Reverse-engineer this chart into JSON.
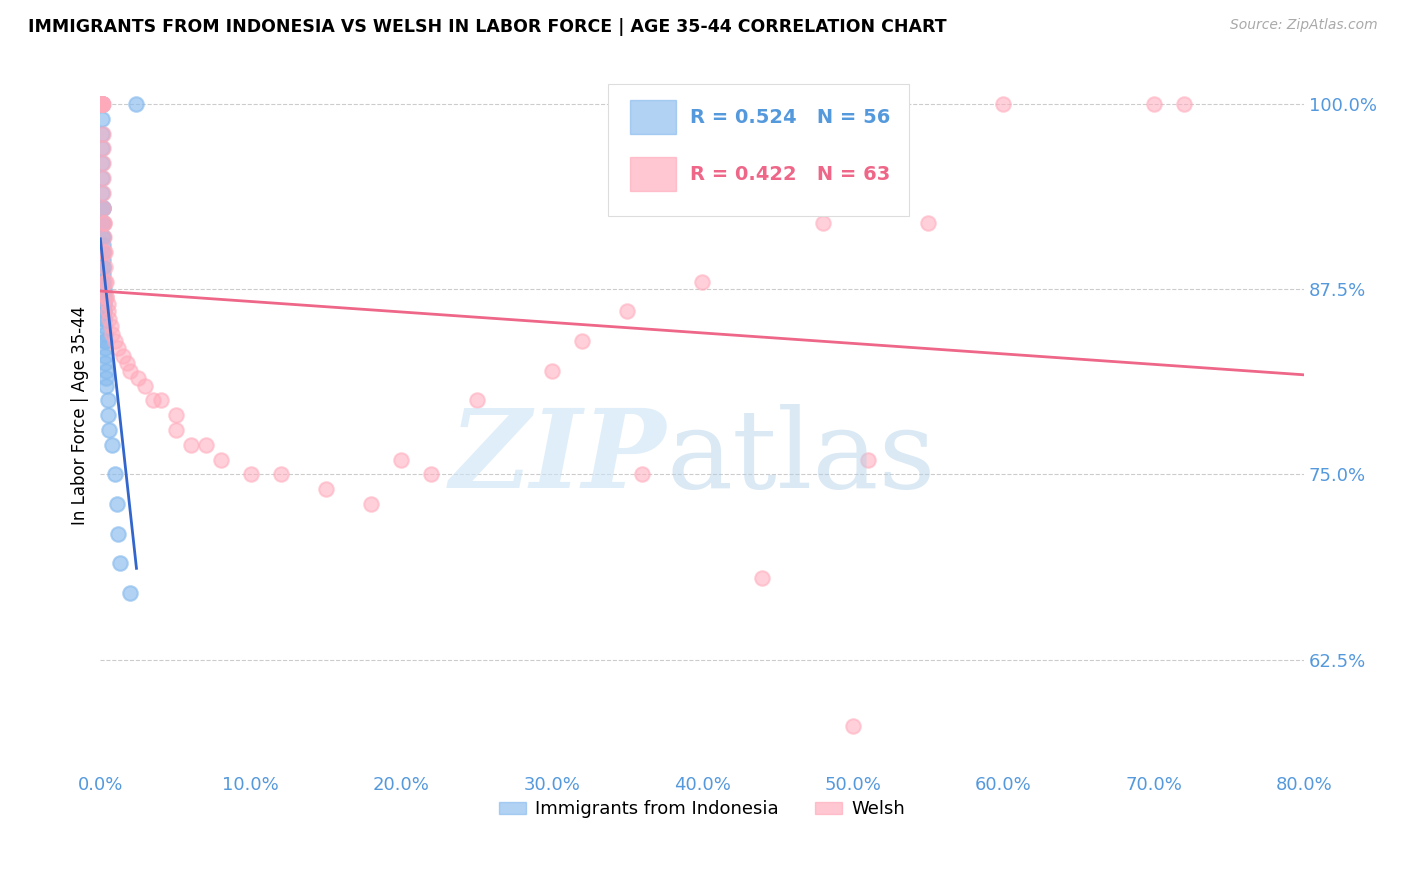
{
  "title": "IMMIGRANTS FROM INDONESIA VS WELSH IN LABOR FORCE | AGE 35-44 CORRELATION CHART",
  "source": "Source: ZipAtlas.com",
  "ylabel": "In Labor Force | Age 35-44",
  "xlim": [
    0.0,
    0.8
  ],
  "ylim": [
    0.55,
    1.03
  ],
  "yticks": [
    0.625,
    0.75,
    0.875,
    1.0
  ],
  "ytick_labels": [
    "62.5%",
    "75.0%",
    "87.5%",
    "100.0%"
  ],
  "xticks": [
    0.0,
    0.1,
    0.2,
    0.3,
    0.4,
    0.5,
    0.6,
    0.7,
    0.8
  ],
  "xtick_labels": [
    "0.0%",
    "10.0%",
    "20.0%",
    "30.0%",
    "40.0%",
    "50.0%",
    "60.0%",
    "70.0%",
    "80.0%"
  ],
  "legend1_r": "R = 0.524",
  "legend1_n": "N = 56",
  "legend2_r": "R = 0.422",
  "legend2_n": "N = 63",
  "legend_label1": "Immigrants from Indonesia",
  "legend_label2": "Welsh",
  "blue_color": "#88bbee",
  "pink_color": "#ffaabb",
  "blue_line_color": "#3366cc",
  "pink_line_color": "#ee6688",
  "axis_color": "#5599dd",
  "indo_x": [
    0.0008,
    0.0009,
    0.001,
    0.001,
    0.001,
    0.001,
    0.001,
    0.0012,
    0.0012,
    0.0013,
    0.0013,
    0.0015,
    0.0015,
    0.0015,
    0.0016,
    0.0016,
    0.0016,
    0.0017,
    0.0017,
    0.0018,
    0.0018,
    0.0019,
    0.002,
    0.002,
    0.002,
    0.002,
    0.002,
    0.0021,
    0.0022,
    0.0022,
    0.0023,
    0.0023,
    0.0024,
    0.0025,
    0.0025,
    0.0026,
    0.0027,
    0.0028,
    0.003,
    0.003,
    0.003,
    0.003,
    0.0032,
    0.0035,
    0.004,
    0.004,
    0.005,
    0.005,
    0.006,
    0.008,
    0.01,
    0.011,
    0.012,
    0.013,
    0.02,
    0.024
  ],
  "indo_y": [
    1.0,
    1.0,
    1.0,
    1.0,
    1.0,
    0.99,
    0.98,
    0.97,
    0.96,
    0.95,
    0.94,
    0.93,
    0.93,
    0.92,
    0.92,
    0.91,
    0.91,
    0.905,
    0.9,
    0.9,
    0.895,
    0.89,
    0.89,
    0.885,
    0.88,
    0.88,
    0.875,
    0.875,
    0.87,
    0.87,
    0.865,
    0.865,
    0.86,
    0.86,
    0.855,
    0.855,
    0.85,
    0.845,
    0.84,
    0.84,
    0.835,
    0.83,
    0.825,
    0.82,
    0.815,
    0.81,
    0.8,
    0.79,
    0.78,
    0.77,
    0.75,
    0.73,
    0.71,
    0.69,
    0.67,
    1.0
  ],
  "welsh_x": [
    0.0008,
    0.0009,
    0.001,
    0.001,
    0.0012,
    0.0013,
    0.0014,
    0.0015,
    0.0016,
    0.0017,
    0.0018,
    0.002,
    0.002,
    0.002,
    0.0022,
    0.0023,
    0.0025,
    0.0027,
    0.003,
    0.003,
    0.0032,
    0.0035,
    0.004,
    0.004,
    0.005,
    0.005,
    0.006,
    0.007,
    0.008,
    0.01,
    0.012,
    0.015,
    0.018,
    0.02,
    0.025,
    0.03,
    0.035,
    0.04,
    0.05,
    0.05,
    0.06,
    0.07,
    0.08,
    0.1,
    0.12,
    0.15,
    0.18,
    0.2,
    0.22,
    0.25,
    0.3,
    0.32,
    0.35,
    0.36,
    0.4,
    0.44,
    0.48,
    0.5,
    0.51,
    0.55,
    0.6,
    0.7,
    0.72
  ],
  "welsh_y": [
    1.0,
    1.0,
    1.0,
    1.0,
    1.0,
    1.0,
    1.0,
    1.0,
    0.98,
    0.97,
    0.96,
    0.95,
    0.94,
    0.93,
    0.92,
    0.92,
    0.91,
    0.9,
    0.9,
    0.89,
    0.88,
    0.88,
    0.87,
    0.87,
    0.865,
    0.86,
    0.855,
    0.85,
    0.845,
    0.84,
    0.835,
    0.83,
    0.825,
    0.82,
    0.815,
    0.81,
    0.8,
    0.8,
    0.79,
    0.78,
    0.77,
    0.77,
    0.76,
    0.75,
    0.75,
    0.74,
    0.73,
    0.76,
    0.75,
    0.8,
    0.82,
    0.84,
    0.86,
    0.75,
    0.88,
    0.68,
    0.92,
    0.58,
    0.76,
    0.92,
    1.0,
    1.0,
    1.0
  ]
}
